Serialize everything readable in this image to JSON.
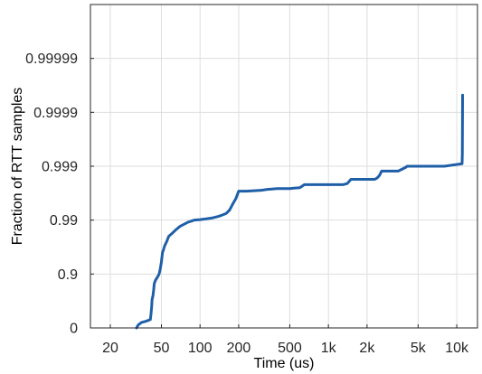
{
  "chart_data": {
    "type": "line",
    "title": "",
    "xlabel": "Time (us)",
    "ylabel": "Fraction of RTT samples",
    "x_scale": "log",
    "y_scale": "inverse-log (tail CDF)",
    "xlim": [
      14,
      14500
    ],
    "ylim": [
      0,
      0.999999
    ],
    "grid": true,
    "x_ticks": [
      {
        "value": 20,
        "label": "20"
      },
      {
        "value": 50,
        "label": "50"
      },
      {
        "value": 100,
        "label": "100"
      },
      {
        "value": 200,
        "label": "200"
      },
      {
        "value": 500,
        "label": "500"
      },
      {
        "value": 1000,
        "label": "1k"
      },
      {
        "value": 2000,
        "label": "2k"
      },
      {
        "value": 5000,
        "label": "5k"
      },
      {
        "value": 10000,
        "label": "10k"
      }
    ],
    "y_ticks": [
      {
        "value": 0,
        "label": "0"
      },
      {
        "value": 0.9,
        "label": "0.9"
      },
      {
        "value": 0.99,
        "label": "0.99"
      },
      {
        "value": 0.999,
        "label": "0.999"
      },
      {
        "value": 0.9999,
        "label": "0.9999"
      },
      {
        "value": 0.99999,
        "label": "0.99999"
      }
    ],
    "series": [
      {
        "color": "#1f5fa8",
        "x": [
          32,
          33,
          35,
          38,
          41,
          41.5,
          42,
          42.3,
          43,
          43.5,
          44,
          45,
          46,
          47,
          48,
          49,
          50,
          51,
          52,
          53,
          55,
          57,
          60,
          65,
          70,
          80,
          90,
          100,
          110,
          125,
          140,
          150,
          160,
          170,
          180,
          190,
          200,
          230,
          300,
          330,
          400,
          500,
          540,
          600,
          650,
          800,
          1000,
          1100,
          1200,
          1300,
          1400,
          1500,
          2000,
          2300,
          2400,
          2500,
          2600,
          2700,
          3500,
          4000,
          4100,
          5000,
          8000,
          11000,
          11050,
          11100
        ],
        "y": [
          0,
          0.12,
          0.21,
          0.25,
          0.3,
          0.45,
          0.6,
          0.7,
          0.75,
          0.8,
          0.85,
          0.87,
          0.88,
          0.89,
          0.9,
          0.92,
          0.94,
          0.96,
          0.965,
          0.97,
          0.975,
          0.98,
          0.982,
          0.985,
          0.987,
          0.989,
          0.99,
          0.9902,
          0.9905,
          0.9909,
          0.9915,
          0.992,
          0.9925,
          0.9935,
          0.995,
          0.996,
          0.9971,
          0.9971,
          0.9972,
          0.9973,
          0.9974,
          0.9974,
          0.99745,
          0.9975,
          0.9978,
          0.9978,
          0.9978,
          0.9978,
          0.9978,
          0.9978,
          0.9979,
          0.99825,
          0.99825,
          0.99825,
          0.99835,
          0.99852,
          0.99877,
          0.99877,
          0.99877,
          0.99895,
          0.999,
          0.999,
          0.999,
          0.9991,
          0.99943,
          0.999952
        ]
      }
    ]
  }
}
